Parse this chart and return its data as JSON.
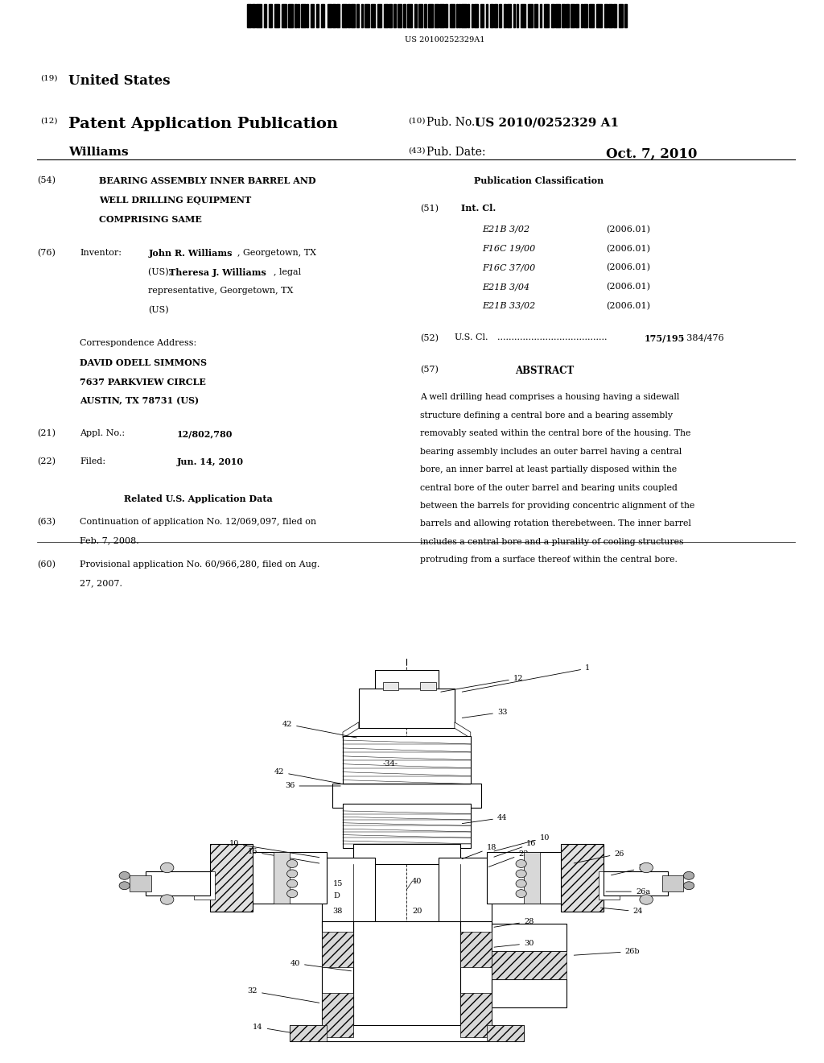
{
  "bg_color": "#ffffff",
  "page_width": 10.24,
  "page_height": 13.2,
  "barcode_text": "US 20100252329A1",
  "header_19": "(19)",
  "header_19_text": "United States",
  "header_12": "(12)",
  "header_12_text": "Patent Application Publication",
  "header_10": "(10)",
  "header_10_text": "Pub. No.:",
  "pub_no": "US 2010/0252329 A1",
  "header_43": "(43)",
  "header_43_text": "Pub. Date:",
  "pub_date": "Oct. 7, 2010",
  "inventor_name": "Williams",
  "field_54_label": "(54)",
  "field_76_label": "(76)",
  "corr_label": "Correspondence Address:",
  "corr_name": "DAVID ODELL SIMMONS",
  "corr_addr1": "7637 PARKVIEW CIRCLE",
  "corr_addr2": "AUSTIN, TX 78731 (US)",
  "field_21_label": "(21)",
  "field_21_text": "12/802,780",
  "field_22_label": "(22)",
  "field_22_text": "Jun. 14, 2010",
  "related_header": "Related U.S. Application Data",
  "field_63_label": "(63)",
  "field_60_label": "(60)",
  "pub_class_header": "Publication Classification",
  "field_51_label": "(51)",
  "int_cl_entries": [
    [
      "E21B 3/02",
      "(2006.01)"
    ],
    [
      "F16C 19/00",
      "(2006.01)"
    ],
    [
      "F16C 37/00",
      "(2006.01)"
    ],
    [
      "E21B 3/04",
      "(2006.01)"
    ],
    [
      "E21B 33/02",
      "(2006.01)"
    ]
  ],
  "field_52_label": "(52)",
  "field_57_label": "(57)",
  "field_57_abstract_header": "ABSTRACT",
  "abstract_lines": [
    "A well drilling head comprises a housing having a sidewall",
    "structure defining a central bore and a bearing assembly",
    "removably seated within the central bore of the housing. The",
    "bearing assembly includes an outer barrel having a central",
    "bore, an inner barrel at least partially disposed within the",
    "central bore of the outer barrel and bearing units coupled",
    "between the barrels for providing concentric alignment of the",
    "barrels and allowing rotation therebetween. The inner barrel",
    "includes a central bore and a plurality of cooling structures",
    "protruding from a surface thereof within the central bore."
  ]
}
